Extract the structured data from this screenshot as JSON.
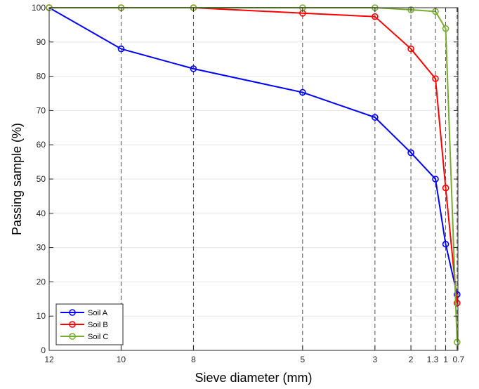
{
  "chart_data": {
    "type": "line",
    "xlabel": "Sieve diameter (mm)",
    "ylabel": "Passing sample (%)",
    "x": [
      12,
      10,
      8,
      5,
      3,
      2,
      1.3,
      1,
      0.7
    ],
    "x_tick_labels": [
      "12",
      "10",
      "8",
      "5",
      "3",
      "2",
      "1.3",
      "1",
      "0.7"
    ],
    "y_ticks": [
      0,
      10,
      20,
      30,
      40,
      50,
      60,
      70,
      80,
      90,
      100
    ],
    "ylim": [
      0,
      100
    ],
    "x_axis_reversed": true,
    "grid": "vertical dashed lines at sieve sizes, light horizontal grid",
    "legend_position": "bottom-left",
    "series": [
      {
        "name": "Soil A",
        "color": "#0000ff",
        "values": [
          100,
          88,
          82.2,
          75.3,
          68,
          57.7,
          50,
          31,
          16.3
        ]
      },
      {
        "name": "Soil B",
        "color": "#ff0000",
        "values": [
          100,
          100,
          100,
          98.4,
          97.4,
          88,
          79.3,
          47.4,
          13.8
        ]
      },
      {
        "name": "Soil C",
        "color": "#77ac30",
        "values": [
          100,
          100,
          100,
          100,
          100,
          99.4,
          98.9,
          93.9,
          2.4
        ]
      }
    ]
  }
}
